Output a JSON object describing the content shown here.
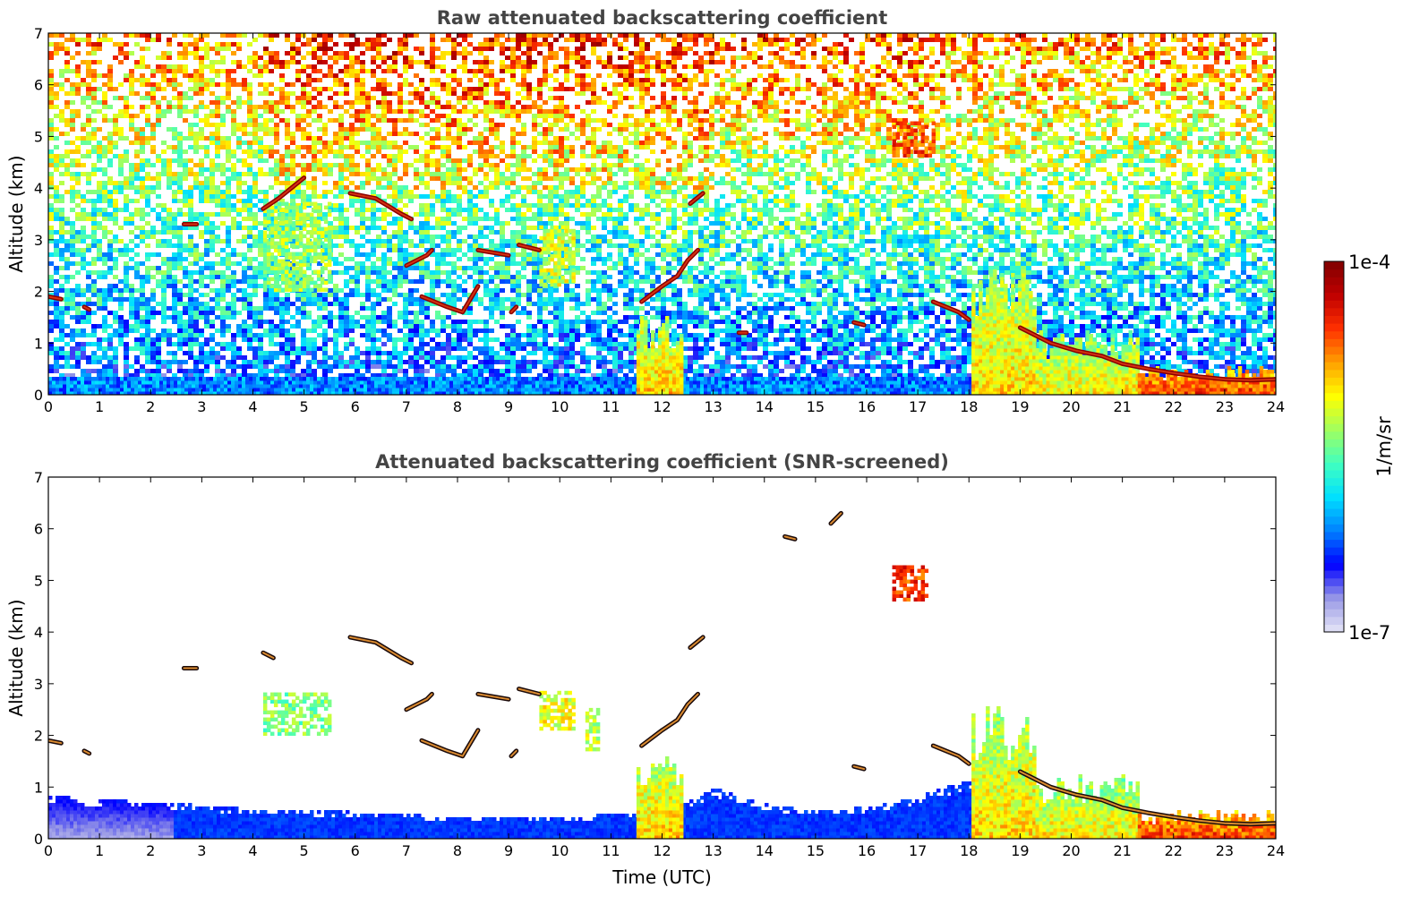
{
  "chart_data": [
    {
      "type": "heatmap",
      "title": "Raw attenuated backscattering coefficient",
      "xlabel": "",
      "ylabel": "Altitude (km)",
      "xlim": [
        0,
        24
      ],
      "ylim": [
        0,
        7
      ],
      "x_ticks": [
        "0",
        "1",
        "2",
        "3",
        "4",
        "5",
        "6",
        "7",
        "8",
        "9",
        "10",
        "11",
        "12",
        "13",
        "14",
        "15",
        "16",
        "17",
        "18",
        "19",
        "20",
        "21",
        "22",
        "23",
        "24"
      ],
      "y_ticks": [
        "0",
        "1",
        "2",
        "3",
        "4",
        "5",
        "6",
        "7"
      ],
      "background_noise": "dense random noise increasing toward top; blue near surface, cyan/green mid, yellow/orange/red above 4 km",
      "features": [
        {
          "kind": "aerosol_layer",
          "t0": 0,
          "t1": 18,
          "z0": 0,
          "z1": 0.4,
          "level": 0.28
        },
        {
          "kind": "plume",
          "t0": 11.5,
          "t1": 12.35,
          "z0": 0,
          "z1": 1.6,
          "level": 0.62
        },
        {
          "kind": "plume",
          "t0": 18.05,
          "t1": 19.3,
          "z0": 0,
          "z1": 2.7,
          "level": 0.6
        },
        {
          "kind": "plume",
          "t0": 19.3,
          "t1": 21.3,
          "z0": 0,
          "z1": 1.3,
          "level": 0.58
        },
        {
          "kind": "plume",
          "t0": 21.3,
          "t1": 24,
          "z0": 0,
          "z1": 0.6,
          "level": 0.75
        },
        {
          "kind": "cloud_band",
          "t0": 4.2,
          "t1": 5.5,
          "z0": 2.0,
          "z1": 3.8,
          "level": 0.55
        },
        {
          "kind": "cloud_band",
          "t0": 9.6,
          "t1": 10.3,
          "z0": 2.1,
          "z1": 3.3,
          "level": 0.6
        },
        {
          "kind": "cloud_band",
          "t0": 16.5,
          "t1": 17.3,
          "z0": 4.6,
          "z1": 5.3,
          "level": 0.8
        },
        {
          "kind": "cloud_line",
          "points": [
            [
              2.65,
              3.3
            ],
            [
              2.9,
              3.3
            ]
          ]
        },
        {
          "kind": "cloud_line",
          "points": [
            [
              4.2,
              3.6
            ],
            [
              4.5,
              3.8
            ],
            [
              5.0,
              4.2
            ]
          ]
        },
        {
          "kind": "cloud_line",
          "points": [
            [
              5.9,
              3.9
            ],
            [
              6.4,
              3.8
            ],
            [
              6.9,
              3.5
            ],
            [
              7.1,
              3.4
            ]
          ]
        },
        {
          "kind": "cloud_line",
          "points": [
            [
              7.0,
              2.5
            ],
            [
              7.4,
              2.7
            ],
            [
              7.5,
              2.8
            ]
          ]
        },
        {
          "kind": "cloud_line",
          "points": [
            [
              7.3,
              1.9
            ],
            [
              7.8,
              1.7
            ],
            [
              8.1,
              1.6
            ],
            [
              8.4,
              2.1
            ]
          ]
        },
        {
          "kind": "cloud_line",
          "points": [
            [
              8.4,
              2.8
            ],
            [
              9.0,
              2.7
            ]
          ]
        },
        {
          "kind": "cloud_line",
          "points": [
            [
              9.2,
              2.9
            ],
            [
              9.6,
              2.8
            ]
          ]
        },
        {
          "kind": "cloud_line",
          "points": [
            [
              9.05,
              1.6
            ],
            [
              9.15,
              1.7
            ]
          ]
        },
        {
          "kind": "cloud_line",
          "points": [
            [
              11.6,
              1.8
            ],
            [
              12.0,
              2.1
            ],
            [
              12.3,
              2.3
            ],
            [
              12.5,
              2.6
            ],
            [
              12.7,
              2.8
            ]
          ]
        },
        {
          "kind": "cloud_line",
          "points": [
            [
              12.55,
              3.7
            ],
            [
              12.8,
              3.9
            ]
          ]
        },
        {
          "kind": "cloud_line",
          "points": [
            [
              0.0,
              1.9
            ],
            [
              0.25,
              1.85
            ]
          ]
        },
        {
          "kind": "cloud_line",
          "points": [
            [
              0.7,
              1.7
            ],
            [
              0.8,
              1.65
            ]
          ]
        },
        {
          "kind": "cloud_line",
          "points": [
            [
              13.5,
              1.2
            ],
            [
              13.65,
              1.2
            ]
          ]
        },
        {
          "kind": "cloud_line",
          "points": [
            [
              15.75,
              1.4
            ],
            [
              15.95,
              1.35
            ]
          ]
        },
        {
          "kind": "cloud_line",
          "points": [
            [
              17.3,
              1.8
            ],
            [
              17.8,
              1.6
            ],
            [
              18.0,
              1.45
            ]
          ]
        },
        {
          "kind": "cloud_line",
          "points": [
            [
              19.0,
              1.3
            ],
            [
              19.6,
              1.0
            ],
            [
              20.1,
              0.85
            ],
            [
              20.6,
              0.75
            ],
            [
              21.0,
              0.6
            ],
            [
              21.5,
              0.5
            ],
            [
              22.0,
              0.42
            ],
            [
              22.5,
              0.35
            ],
            [
              23.0,
              0.3
            ],
            [
              23.5,
              0.28
            ],
            [
              24.0,
              0.3
            ]
          ]
        }
      ]
    },
    {
      "type": "heatmap",
      "title": "Attenuated backscattering coefficient (SNR-screened)",
      "xlabel": "Time (UTC)",
      "ylabel": "Altitude (km)",
      "xlim": [
        0,
        24
      ],
      "ylim": [
        0,
        7
      ],
      "x_ticks": [
        "0",
        "1",
        "2",
        "3",
        "4",
        "5",
        "6",
        "7",
        "8",
        "9",
        "10",
        "11",
        "12",
        "13",
        "14",
        "15",
        "16",
        "17",
        "18",
        "19",
        "20",
        "21",
        "22",
        "23",
        "24"
      ],
      "y_ticks": [
        "0",
        "1",
        "2",
        "3",
        "4",
        "5",
        "6",
        "7"
      ],
      "background_noise": "none (low-SNR pixels removed, white)",
      "features": [
        {
          "kind": "boundary_layer",
          "profile": [
            [
              0,
              0.85
            ],
            [
              2,
              0.75
            ],
            [
              4,
              0.6
            ],
            [
              6,
              0.55
            ],
            [
              8,
              0.45
            ],
            [
              10,
              0.45
            ],
            [
              11,
              0.5
            ],
            [
              12,
              0.55
            ],
            [
              13,
              1.0
            ],
            [
              14,
              0.7
            ],
            [
              15,
              0.55
            ],
            [
              16,
              0.65
            ],
            [
              17,
              0.85
            ],
            [
              18,
              1.2
            ]
          ],
          "level": 0.22
        },
        {
          "kind": "plume",
          "t0": 11.5,
          "t1": 12.35,
          "z0": 0,
          "z1": 1.6,
          "level": 0.62
        },
        {
          "kind": "plume",
          "t0": 18.05,
          "t1": 19.3,
          "z0": 0,
          "z1": 2.7,
          "level": 0.6
        },
        {
          "kind": "plume",
          "t0": 19.3,
          "t1": 21.3,
          "z0": 0,
          "z1": 1.3,
          "level": 0.58
        },
        {
          "kind": "plume",
          "t0": 21.3,
          "t1": 24,
          "z0": 0,
          "z1": 0.6,
          "level": 0.75
        },
        {
          "kind": "cloud_band",
          "t0": 4.2,
          "t1": 5.5,
          "z0": 2.0,
          "z1": 2.9,
          "level": 0.52
        },
        {
          "kind": "cloud_band",
          "t0": 9.6,
          "t1": 10.3,
          "z0": 2.1,
          "z1": 2.9,
          "level": 0.62
        },
        {
          "kind": "cloud_band",
          "t0": 10.5,
          "t1": 10.75,
          "z0": 1.7,
          "z1": 2.6,
          "level": 0.58
        },
        {
          "kind": "cloud_band",
          "t0": 16.5,
          "t1": 17.2,
          "z0": 4.6,
          "z1": 5.3,
          "level": 0.82
        },
        {
          "kind": "cloud_line",
          "points": [
            [
              2.65,
              3.3
            ],
            [
              2.9,
              3.3
            ]
          ]
        },
        {
          "kind": "cloud_line",
          "points": [
            [
              4.2,
              3.6
            ],
            [
              4.4,
              3.5
            ]
          ]
        },
        {
          "kind": "cloud_line",
          "points": [
            [
              5.9,
              3.9
            ],
            [
              6.4,
              3.8
            ],
            [
              6.9,
              3.5
            ],
            [
              7.1,
              3.4
            ]
          ]
        },
        {
          "kind": "cloud_line",
          "points": [
            [
              7.0,
              2.5
            ],
            [
              7.4,
              2.7
            ],
            [
              7.5,
              2.8
            ]
          ]
        },
        {
          "kind": "cloud_line",
          "points": [
            [
              7.3,
              1.9
            ],
            [
              7.8,
              1.7
            ],
            [
              8.1,
              1.6
            ],
            [
              8.4,
              2.1
            ]
          ]
        },
        {
          "kind": "cloud_line",
          "points": [
            [
              8.4,
              2.8
            ],
            [
              9.0,
              2.7
            ]
          ]
        },
        {
          "kind": "cloud_line",
          "points": [
            [
              9.2,
              2.9
            ],
            [
              9.6,
              2.8
            ]
          ]
        },
        {
          "kind": "cloud_line",
          "points": [
            [
              9.05,
              1.6
            ],
            [
              9.15,
              1.7
            ]
          ]
        },
        {
          "kind": "cloud_line",
          "points": [
            [
              11.6,
              1.8
            ],
            [
              12.0,
              2.1
            ],
            [
              12.3,
              2.3
            ],
            [
              12.5,
              2.6
            ],
            [
              12.7,
              2.8
            ]
          ]
        },
        {
          "kind": "cloud_line",
          "points": [
            [
              12.55,
              3.7
            ],
            [
              12.8,
              3.9
            ]
          ]
        },
        {
          "kind": "cloud_line",
          "points": [
            [
              0.0,
              1.9
            ],
            [
              0.25,
              1.85
            ]
          ]
        },
        {
          "kind": "cloud_line",
          "points": [
            [
              0.7,
              1.7
            ],
            [
              0.8,
              1.65
            ]
          ]
        },
        {
          "kind": "cloud_line",
          "points": [
            [
              15.75,
              1.4
            ],
            [
              15.95,
              1.35
            ]
          ]
        },
        {
          "kind": "cloud_line",
          "points": [
            [
              17.3,
              1.8
            ],
            [
              17.8,
              1.6
            ],
            [
              18.0,
              1.45
            ]
          ]
        },
        {
          "kind": "cloud_line",
          "points": [
            [
              19.0,
              1.3
            ],
            [
              19.6,
              1.0
            ],
            [
              20.1,
              0.85
            ],
            [
              20.6,
              0.75
            ],
            [
              21.0,
              0.6
            ],
            [
              21.5,
              0.5
            ],
            [
              22.0,
              0.42
            ],
            [
              22.5,
              0.35
            ],
            [
              23.0,
              0.3
            ],
            [
              23.5,
              0.28
            ],
            [
              24.0,
              0.3
            ]
          ]
        },
        {
          "kind": "cloud_line",
          "points": [
            [
              14.4,
              5.85
            ],
            [
              14.6,
              5.8
            ]
          ]
        },
        {
          "kind": "cloud_line",
          "points": [
            [
              15.3,
              6.1
            ],
            [
              15.5,
              6.3
            ]
          ]
        }
      ]
    }
  ],
  "colorbar": {
    "label": "1/m/sr",
    "max_label": "1e-4",
    "min_label": "1e-7",
    "scale": "log",
    "colors": [
      "#e6e6f7",
      "#9999e6",
      "#0000ff",
      "#0080ff",
      "#00e0ff",
      "#40ffc0",
      "#a0ff60",
      "#ffff00",
      "#ffa000",
      "#ff3000",
      "#c00000",
      "#800000"
    ]
  }
}
